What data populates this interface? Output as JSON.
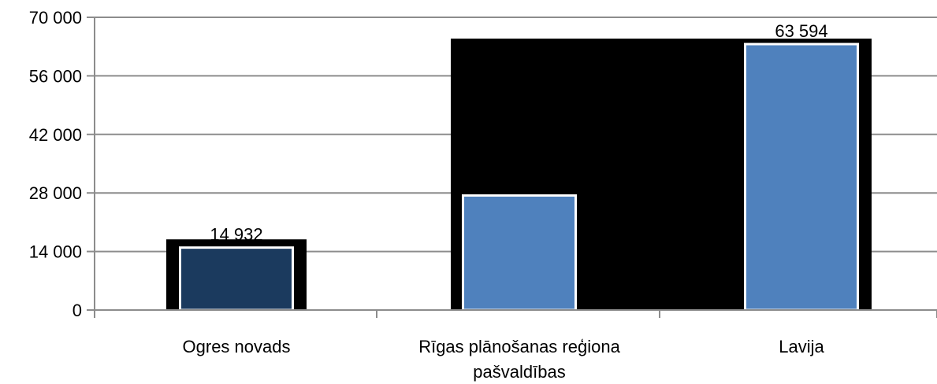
{
  "chart_data": {
    "type": "bar",
    "categories": [
      "Ogres novads",
      "Rīgas plānošanas reģiona pašvaldības",
      "Lavija"
    ],
    "category_label_lines": [
      [
        "Ogres novads"
      ],
      [
        "Rīgas plānošanas reģiona",
        "pašvaldības"
      ],
      [
        "Lavija"
      ]
    ],
    "values": [
      14932,
      27400,
      63594
    ],
    "data_labels": [
      "14 932",
      "",
      "63 594"
    ],
    "ylim": [
      0,
      70000
    ],
    "yticks": [
      0,
      14000,
      28000,
      42000,
      56000,
      70000
    ],
    "ytick_labels": [
      "0",
      "14 000",
      "28 000",
      "42 000",
      "56 000",
      "70 000"
    ],
    "title": "",
    "xlabel": "",
    "ylabel": "",
    "grid": true,
    "legend": "none"
  },
  "colors": {
    "bar_highlight": "#1b3a5e",
    "bar_default": "#4f81bd",
    "bar_outline": "#ffffff",
    "backdrop": "#000000",
    "gridline": "#8c8c8c",
    "axis": "#8c8c8c"
  }
}
